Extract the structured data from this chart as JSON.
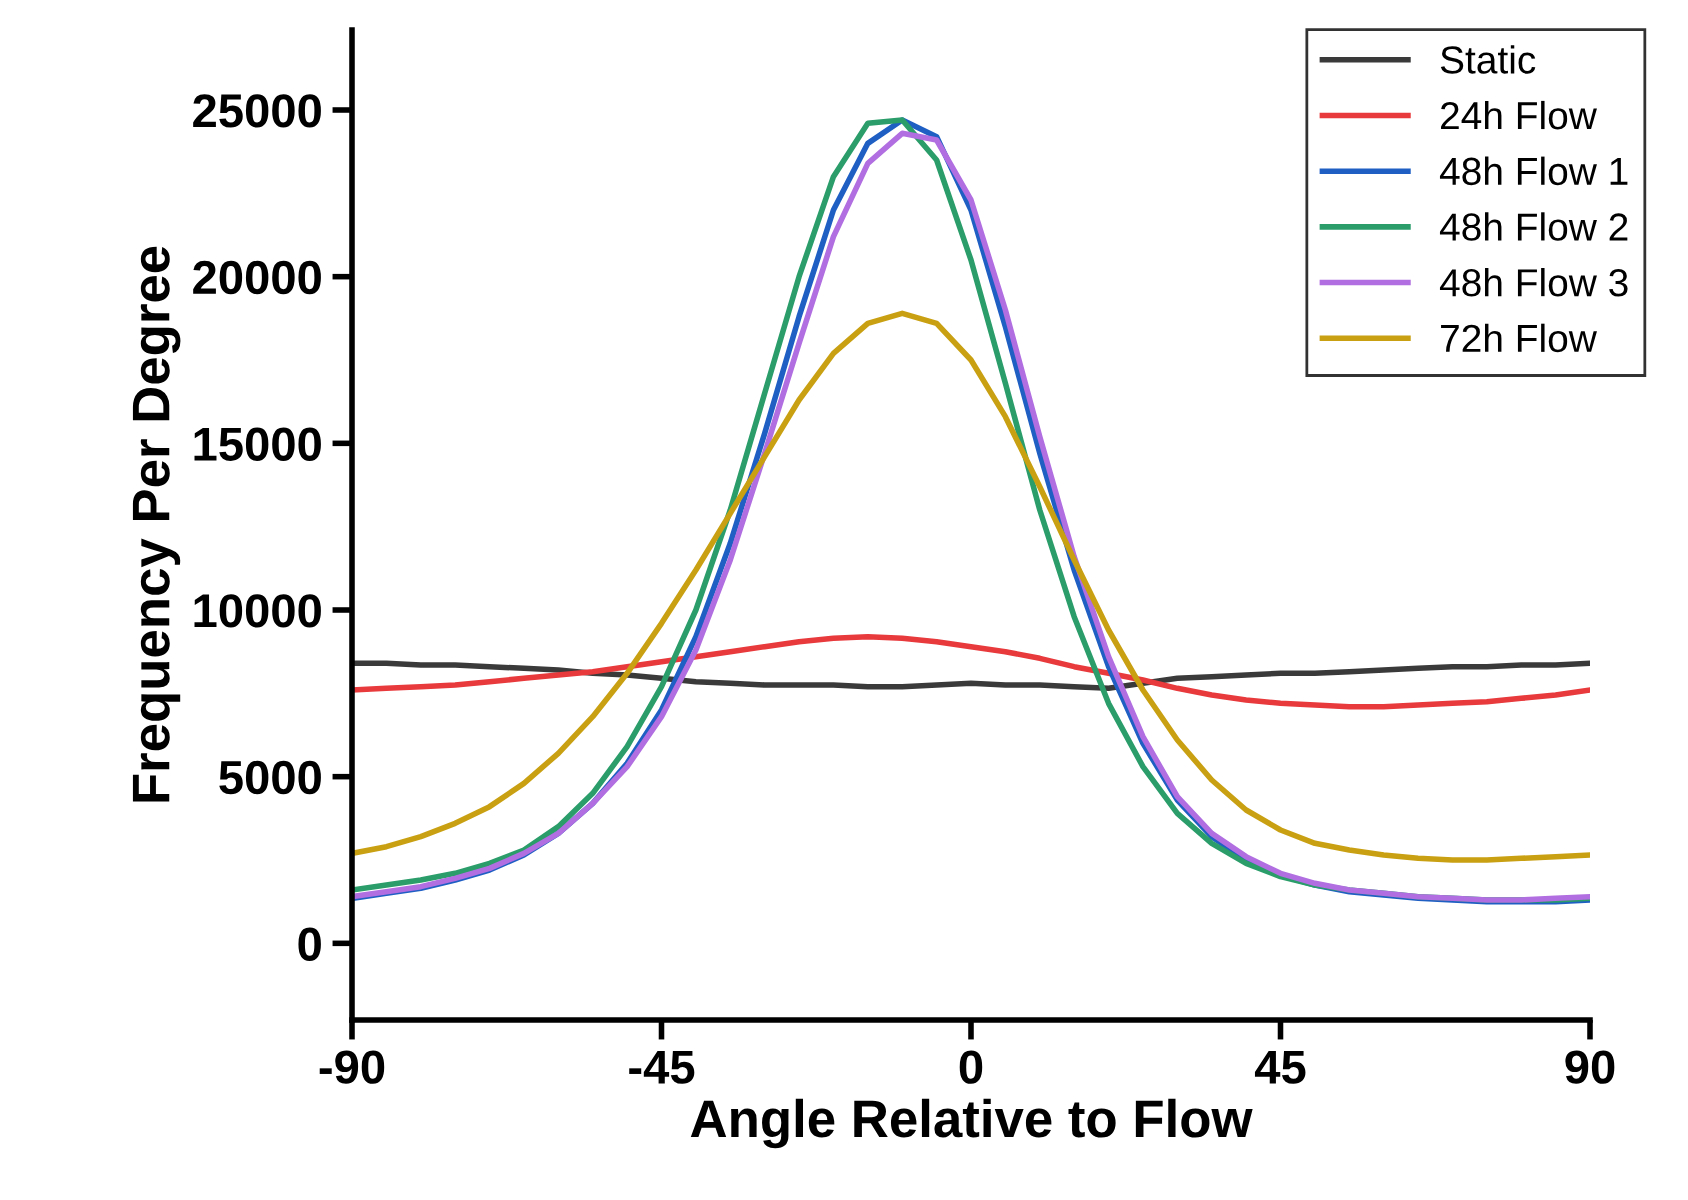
{
  "chart_data": {
    "type": "line",
    "xlabel": "Angle Relative to Flow",
    "ylabel": "Frequency Per Degree",
    "x": [
      -90,
      -85,
      -80,
      -75,
      -70,
      -65,
      -60,
      -55,
      -50,
      -45,
      -40,
      -35,
      -30,
      -25,
      -20,
      -15,
      -10,
      -5,
      0,
      5,
      10,
      15,
      20,
      25,
      30,
      35,
      40,
      45,
      50,
      55,
      60,
      65,
      70,
      75,
      80,
      85,
      90
    ],
    "series": [
      {
        "name": "Static",
        "color": "#3a3a3a",
        "values": [
          8400,
          8400,
          8350,
          8350,
          8300,
          8250,
          8200,
          8100,
          8050,
          7950,
          7850,
          7800,
          7750,
          7750,
          7750,
          7700,
          7700,
          7750,
          7800,
          7750,
          7750,
          7700,
          7650,
          7800,
          7950,
          8000,
          8050,
          8100,
          8100,
          8150,
          8200,
          8250,
          8300,
          8300,
          8350,
          8350,
          8400
        ]
      },
      {
        "name": "24h Flow",
        "color": "#e8393c",
        "values": [
          7600,
          7650,
          7700,
          7750,
          7850,
          7950,
          8050,
          8150,
          8300,
          8450,
          8600,
          8750,
          8900,
          9050,
          9150,
          9200,
          9150,
          9050,
          8900,
          8750,
          8550,
          8300,
          8100,
          7900,
          7650,
          7450,
          7300,
          7200,
          7150,
          7100,
          7100,
          7150,
          7200,
          7250,
          7350,
          7450,
          7600
        ]
      },
      {
        "name": "48h Flow 1",
        "color": "#1f5fc4",
        "values": [
          1350,
          1500,
          1650,
          1900,
          2200,
          2650,
          3300,
          4200,
          5400,
          7000,
          9200,
          12000,
          15300,
          18800,
          22000,
          24000,
          24700,
          24200,
          22000,
          18500,
          14700,
          11200,
          8300,
          6000,
          4300,
          3200,
          2500,
          2050,
          1750,
          1550,
          1450,
          1350,
          1300,
          1250,
          1250,
          1250,
          1300
        ]
      },
      {
        "name": "48h Flow 2",
        "color": "#2a9d6a",
        "values": [
          1600,
          1750,
          1900,
          2100,
          2400,
          2800,
          3500,
          4500,
          5900,
          7700,
          10000,
          13000,
          16500,
          20000,
          23000,
          24600,
          24700,
          23500,
          20500,
          16800,
          13000,
          9800,
          7200,
          5300,
          3900,
          3000,
          2400,
          2000,
          1750,
          1600,
          1500,
          1400,
          1350,
          1300,
          1300,
          1300,
          1350
        ]
      },
      {
        "name": "48h Flow 3",
        "color": "#b06ee0",
        "values": [
          1400,
          1550,
          1700,
          1950,
          2250,
          2700,
          3300,
          4200,
          5300,
          6800,
          8800,
          11500,
          14700,
          18000,
          21200,
          23400,
          24300,
          24100,
          22300,
          19000,
          15200,
          11600,
          8600,
          6200,
          4400,
          3300,
          2600,
          2100,
          1800,
          1600,
          1500,
          1400,
          1350,
          1300,
          1300,
          1350,
          1400
        ]
      },
      {
        "name": "72h Flow",
        "color": "#c9a012",
        "values": [
          2700,
          2900,
          3200,
          3600,
          4100,
          4800,
          5700,
          6800,
          8100,
          9600,
          11200,
          12900,
          14600,
          16300,
          17700,
          18600,
          18900,
          18600,
          17500,
          15800,
          13700,
          11500,
          9400,
          7600,
          6100,
          4900,
          4000,
          3400,
          3000,
          2800,
          2650,
          2550,
          2500,
          2500,
          2550,
          2600,
          2650
        ]
      }
    ],
    "xlim": [
      -90,
      90
    ],
    "xticks": [
      -90,
      -45,
      0,
      45,
      90
    ],
    "ylim": [
      -2300,
      27400
    ],
    "yticks": [
      0,
      5000,
      10000,
      15000,
      20000,
      25000
    ],
    "grid": false,
    "legend": "top right",
    "line_style": "solid",
    "marker": "none"
  }
}
